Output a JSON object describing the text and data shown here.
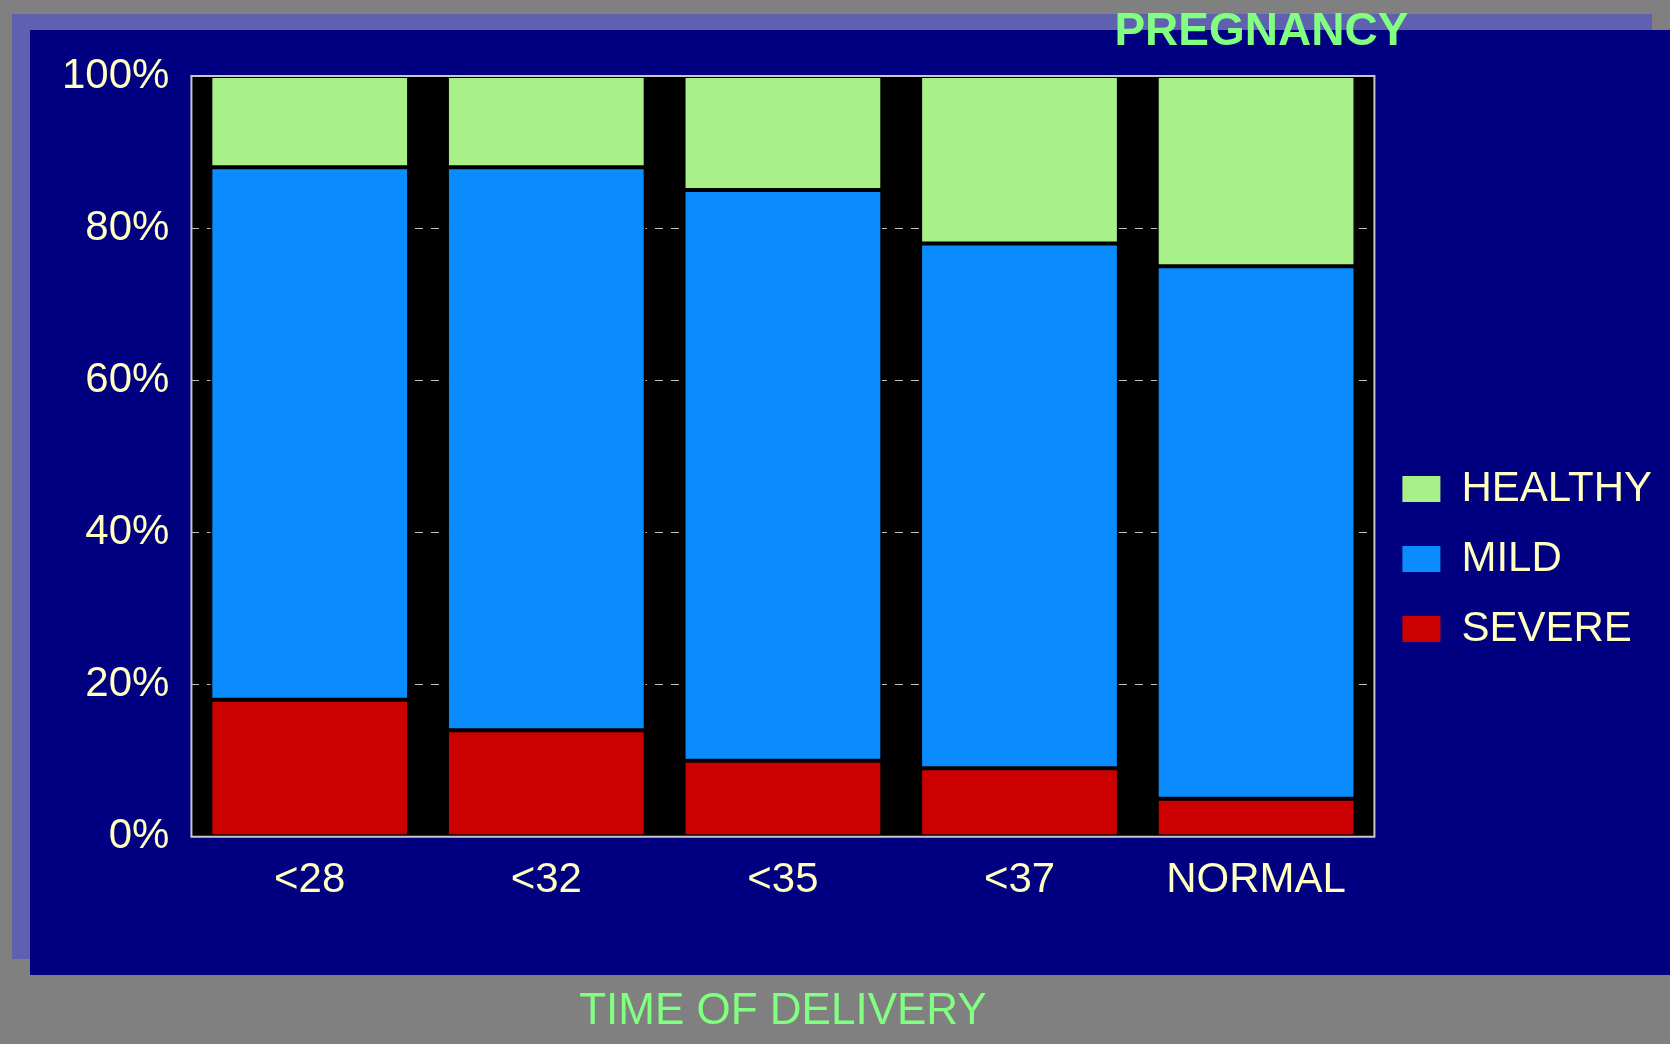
{
  "chart_data": {
    "type": "bar",
    "title": "PREGNANCY",
    "xlabel": "TIME OF DELIVERY",
    "categories": [
      "<28",
      "<32",
      "<35",
      "<37",
      "NORMAL"
    ],
    "stacked": true,
    "series": [
      {
        "name": "SEVERE",
        "color": "#cc0000",
        "values": [
          18,
          14,
          10,
          9,
          5
        ]
      },
      {
        "name": "MILD",
        "color": "#0a8cff",
        "values": [
          70,
          74,
          75,
          69,
          70
        ]
      },
      {
        "name": "HEALTHY",
        "color": "#a8f088",
        "values": [
          12,
          12,
          15,
          22,
          25
        ]
      }
    ],
    "ylim": [
      0,
      100
    ],
    "yticks": [
      {
        "value": 0,
        "label": "0%"
      },
      {
        "value": 20,
        "label": "20%"
      },
      {
        "value": 40,
        "label": "40%"
      },
      {
        "value": 60,
        "label": "60%"
      },
      {
        "value": 80,
        "label": "80%"
      },
      {
        "value": 100,
        "label": "100%"
      }
    ],
    "grid": "y",
    "legend": "right"
  }
}
